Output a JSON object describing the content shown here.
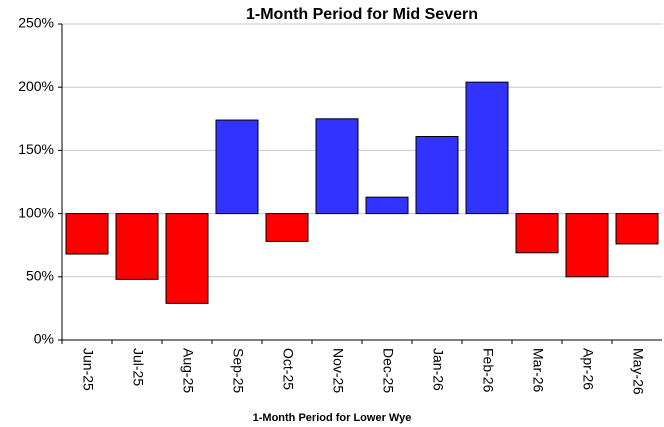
{
  "chart_data": {
    "type": "bar",
    "title": "1-Month Period for Mid Severn",
    "x_label": "1-Month Period for Lower Wye",
    "categories": [
      "Jun-25",
      "Jul-25",
      "Aug-25",
      "Sep-25",
      "Oct-25",
      "Nov-25",
      "Dec-25",
      "Jan-26",
      "Feb-26",
      "Mar-26",
      "Apr-26",
      "May-26"
    ],
    "values": [
      68,
      48,
      29,
      174,
      78,
      175,
      113,
      161,
      204,
      69,
      50,
      76
    ],
    "baseline": 100,
    "color_above": "#3333ff",
    "color_below": "#ff0000",
    "ylim": [
      0,
      250
    ],
    "yticks": [
      {
        "value": 0,
        "label": "0%"
      },
      {
        "value": 50,
        "label": "50%"
      },
      {
        "value": 100,
        "label": "100%"
      },
      {
        "value": 150,
        "label": "150%"
      },
      {
        "value": 200,
        "label": "200%"
      },
      {
        "value": 250,
        "label": "250%"
      }
    ],
    "grid": true
  }
}
